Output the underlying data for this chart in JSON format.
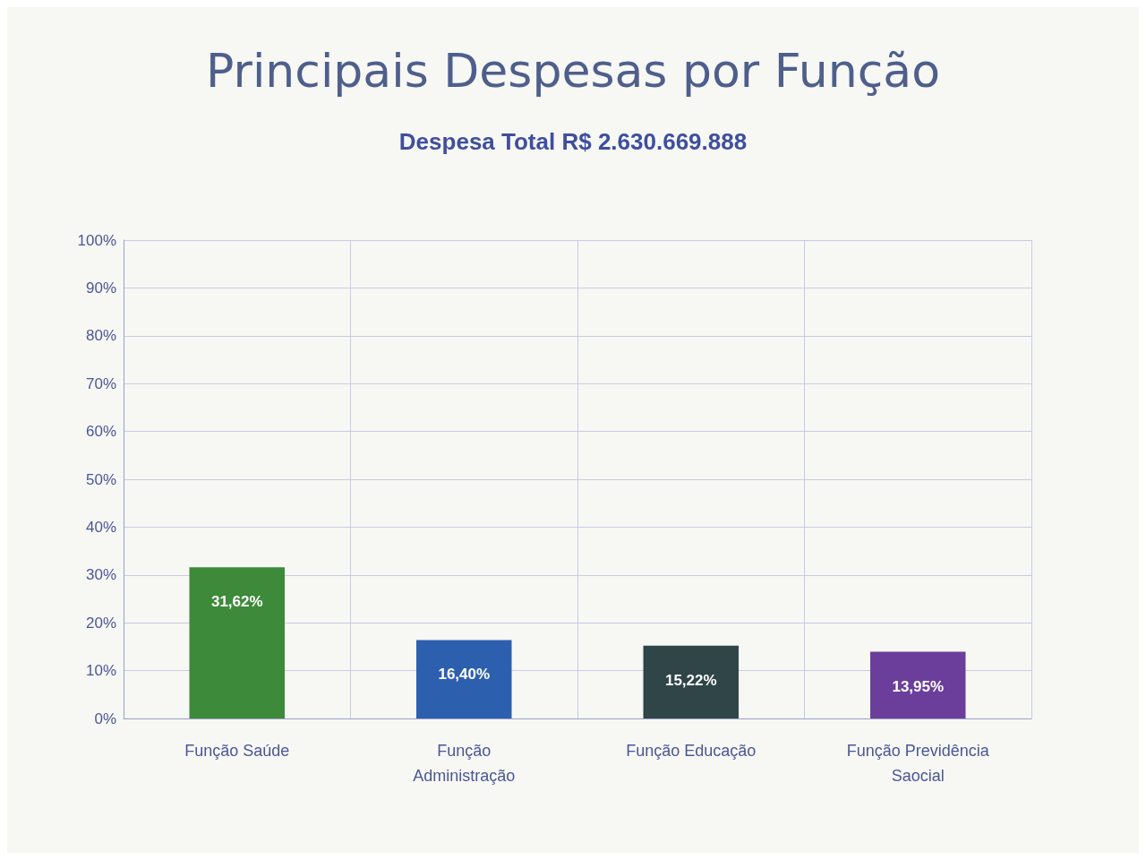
{
  "chart_data": {
    "type": "bar",
    "title": "Principais Despesas por Função",
    "subtitle": "Despesa Total R$ 2.630.669.888",
    "categories": [
      "Função Saúde",
      "Função Administração",
      "Função Educação",
      "Função Previdência Saocial"
    ],
    "values": [
      31.62,
      16.4,
      15.22,
      13.95
    ],
    "colors": [
      "#3c8a3a",
      "#2c5fae",
      "#2f4548",
      "#6b3e9c"
    ],
    "value_labels": [
      "31,62%",
      "16,40%",
      "15,22%",
      "13,95%"
    ],
    "ylim": [
      0,
      100
    ],
    "yticks": [
      {
        "value": 0,
        "label": "0%"
      },
      {
        "value": 10,
        "label": "10%"
      },
      {
        "value": 20,
        "label": "20%"
      },
      {
        "value": 30,
        "label": "30%"
      },
      {
        "value": 40,
        "label": "40%"
      },
      {
        "value": 50,
        "label": "50%"
      },
      {
        "value": 60,
        "label": "60%"
      },
      {
        "value": 70,
        "label": "70%"
      },
      {
        "value": 80,
        "label": "80%"
      },
      {
        "value": 90,
        "label": "90%"
      },
      {
        "value": 100,
        "label": "100%"
      }
    ],
    "grid": true
  }
}
